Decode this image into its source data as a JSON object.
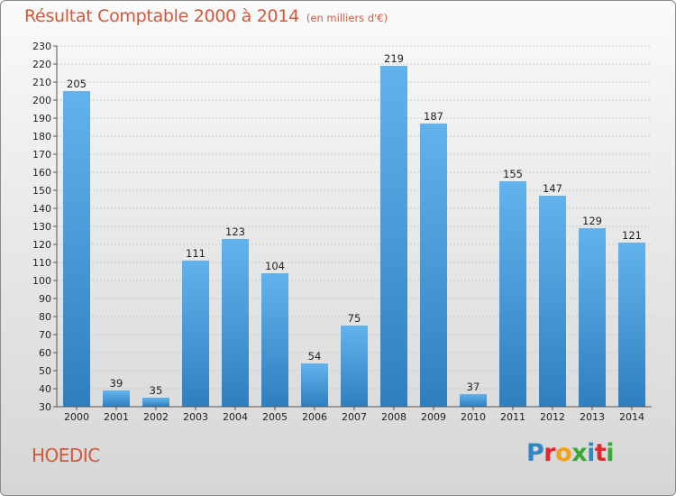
{
  "header": {
    "title": "Résultat Comptable 2000 à 2014",
    "unit": "(en milliers d'€)"
  },
  "footer": {
    "commune": "HOEDIC",
    "logo_letters": [
      {
        "ch": "P",
        "color": "#2f88c6"
      },
      {
        "ch": "r",
        "color": "#e2272e"
      },
      {
        "ch": "o",
        "color": "#f0a21c"
      },
      {
        "ch": "x",
        "color": "#3aa935"
      },
      {
        "ch": "i",
        "color": "#2f88c6"
      },
      {
        "ch": "t",
        "color": "#e2272e"
      },
      {
        "ch": "i",
        "color": "#3aa935"
      }
    ]
  },
  "chart_data": {
    "type": "bar",
    "title": "Résultat Comptable 2000 à 2014",
    "subtitle": "(en milliers d'€)",
    "xlabel": "",
    "ylabel": "",
    "categories": [
      "2000",
      "2001",
      "2002",
      "2003",
      "2004",
      "2005",
      "2006",
      "2007",
      "2008",
      "2009",
      "2010",
      "2011",
      "2012",
      "2013",
      "2014"
    ],
    "values": [
      205,
      39,
      35,
      111,
      123,
      104,
      54,
      75,
      219,
      187,
      37,
      155,
      147,
      129,
      121
    ],
    "ylim": [
      30,
      230
    ],
    "yticks": [
      30,
      40,
      50,
      60,
      70,
      80,
      90,
      100,
      110,
      120,
      130,
      140,
      150,
      160,
      170,
      180,
      190,
      200,
      210,
      220,
      230
    ],
    "grid": true,
    "legend": "none",
    "colors": {
      "bar_light": "#62b3ec",
      "bar_dark": "#2f7fc0",
      "grid": "#c8c8c8",
      "axis": "#555555"
    }
  }
}
